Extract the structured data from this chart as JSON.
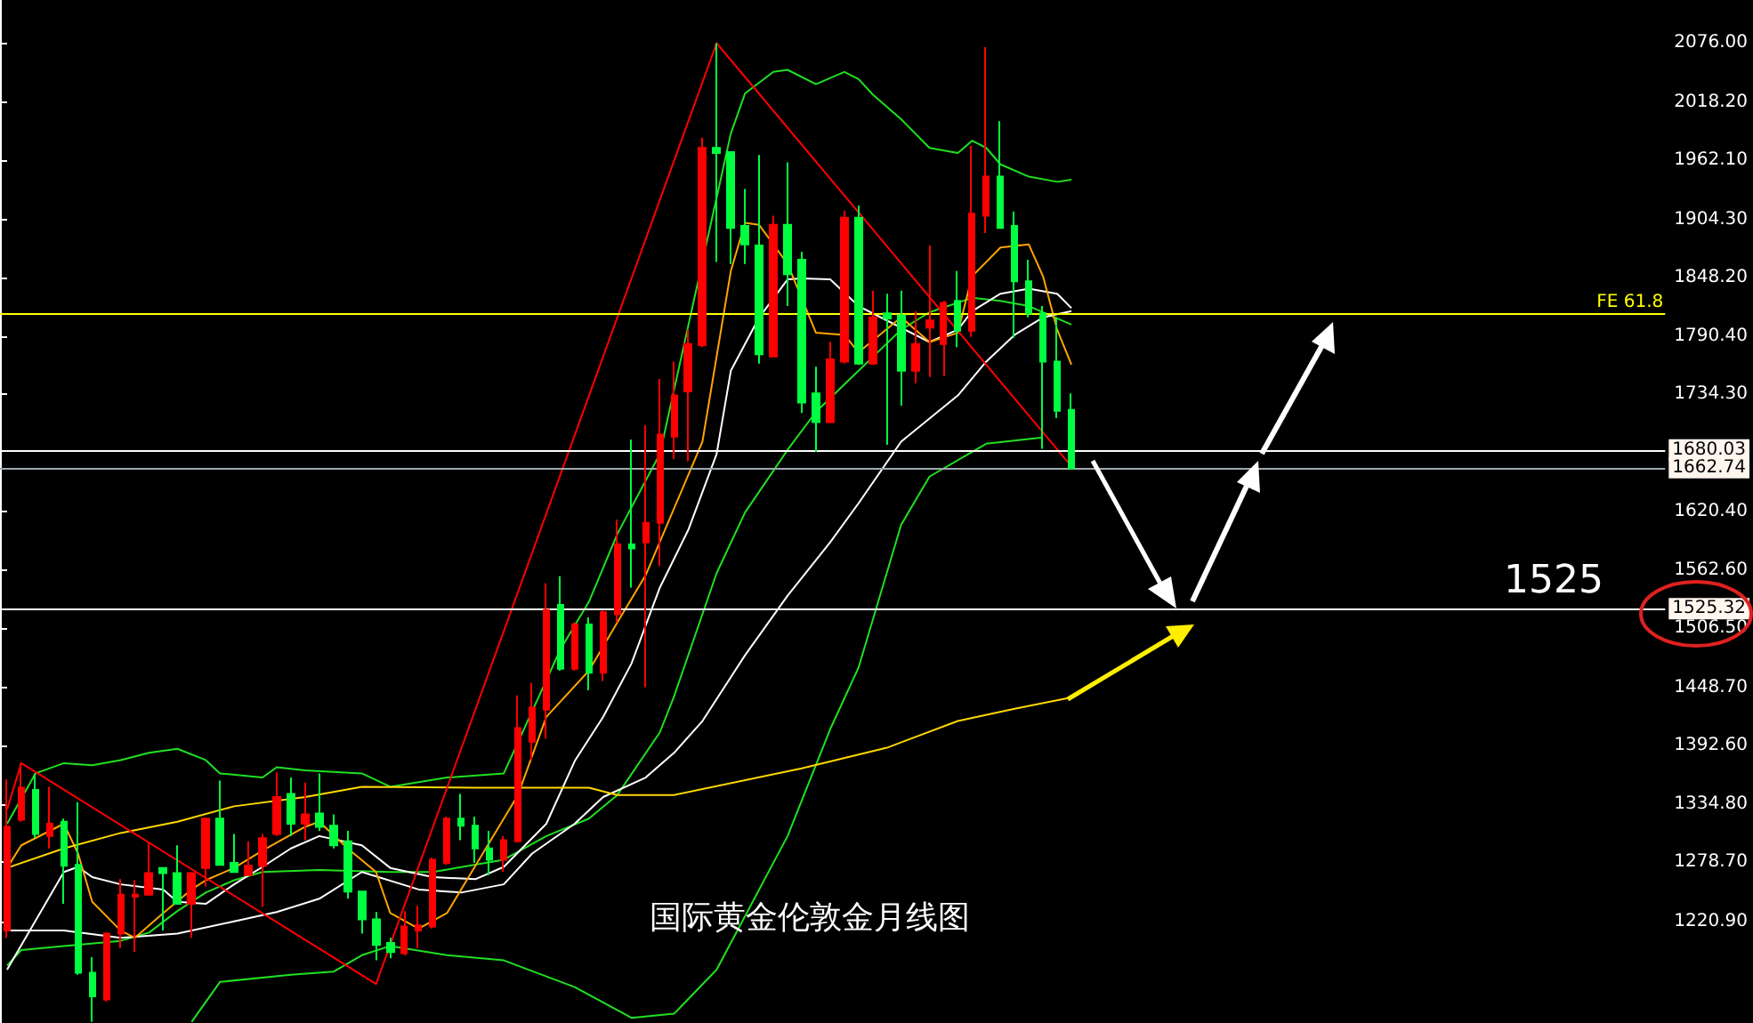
{
  "chart_data": {
    "type": "candlestick",
    "title": "国际黄金伦敦金月线图",
    "categories": [
      null,
      null,
      null,
      null,
      null,
      null,
      null,
      null,
      null,
      null,
      null,
      null,
      null,
      null,
      null,
      null,
      null,
      null,
      null,
      null,
      null,
      null,
      null,
      null,
      null,
      null,
      null,
      null,
      null,
      null,
      null,
      null,
      null,
      null,
      null,
      null,
      null,
      null,
      null,
      null,
      null,
      null,
      null,
      null,
      null,
      null,
      null,
      null,
      null,
      null,
      null,
      null,
      null,
      null,
      null,
      null,
      null,
      null,
      null,
      null,
      null,
      null,
      null,
      null,
      null,
      null,
      null,
      null,
      null,
      null,
      null,
      null,
      null,
      null,
      null,
      null
    ],
    "ohlc": [
      [
        1212,
        1359,
        1205,
        1313
      ],
      [
        1320,
        1375,
        1318,
        1351
      ],
      [
        1349,
        1365,
        1302,
        1306
      ],
      [
        1304,
        1352,
        1292,
        1316
      ],
      [
        1318,
        1321,
        1238,
        1275
      ],
      [
        1276,
        1337,
        1169,
        1171
      ],
      [
        1171,
        1186,
        1123,
        1148
      ],
      [
        1145,
        1209,
        1143,
        1209
      ],
      [
        1209,
        1262,
        1195,
        1247
      ],
      [
        1245,
        1261,
        1191,
        1247
      ],
      [
        1247,
        1297,
        1247,
        1268
      ],
      [
        1273,
        1273,
        1212,
        1268
      ],
      [
        1268,
        1295,
        1238,
        1238
      ],
      [
        1238,
        1269,
        1205,
        1268
      ],
      [
        1273,
        1321,
        1255,
        1321
      ],
      [
        1321,
        1358,
        1275,
        1276
      ],
      [
        1278,
        1306,
        1269,
        1269
      ],
      [
        1266,
        1299,
        1266,
        1275
      ],
      [
        1275,
        1306,
        1235,
        1302
      ],
      [
        1306,
        1366,
        1304,
        1342
      ],
      [
        1345,
        1361,
        1304,
        1316
      ],
      [
        1316,
        1356,
        1300,
        1325
      ],
      [
        1326,
        1365,
        1309,
        1313
      ],
      [
        1314,
        1325,
        1292,
        1295
      ],
      [
        1299,
        1309,
        1243,
        1250
      ],
      [
        1250,
        1250,
        1209,
        1223
      ],
      [
        1223,
        1230,
        1183,
        1198
      ],
      [
        1200,
        1205,
        1185,
        1191
      ],
      [
        1190,
        1231,
        1188,
        1216
      ],
      [
        1212,
        1236,
        1195,
        1217
      ],
      [
        1216,
        1283,
        1214,
        1281
      ],
      [
        1278,
        1323,
        1276,
        1321
      ],
      [
        1321,
        1345,
        1300,
        1314
      ],
      [
        1314,
        1323,
        1278,
        1292
      ],
      [
        1292,
        1309,
        1266,
        1281
      ],
      [
        1281,
        1304,
        1269,
        1300
      ],
      [
        1299,
        1441,
        1299,
        1409
      ],
      [
        1396,
        1453,
        1378,
        1429
      ],
      [
        1427,
        1550,
        1399,
        1524
      ],
      [
        1529,
        1557,
        1465,
        1467
      ],
      [
        1467,
        1512,
        1465,
        1510
      ],
      [
        1510,
        1517,
        1446,
        1463
      ],
      [
        1463,
        1524,
        1455,
        1522
      ],
      [
        1520,
        1612,
        1512,
        1588
      ],
      [
        1588,
        1690,
        1546,
        1584
      ],
      [
        1590,
        1704,
        1449,
        1609
      ],
      [
        1609,
        1749,
        1567,
        1695
      ],
      [
        1693,
        1766,
        1671,
        1733
      ],
      [
        1737,
        1797,
        1669,
        1783
      ],
      [
        1782,
        1984,
        1780,
        1974
      ],
      [
        1974,
        2076,
        1863,
        1969
      ],
      [
        1970,
        1970,
        1861,
        1896
      ],
      [
        1898,
        1934,
        1861,
        1880
      ],
      [
        1879,
        1967,
        1764,
        1773
      ],
      [
        1771,
        1908,
        1771,
        1899
      ],
      [
        1899,
        1960,
        1820,
        1851
      ],
      [
        1865,
        1873,
        1716,
        1726
      ],
      [
        1735,
        1761,
        1678,
        1707
      ],
      [
        1707,
        1785,
        1706,
        1768
      ],
      [
        1766,
        1913,
        1764,
        1906
      ],
      [
        1906,
        1918,
        1763,
        1764
      ],
      [
        1764,
        1835,
        1764,
        1809
      ],
      [
        1813,
        1832,
        1685,
        1808
      ],
      [
        1811,
        1835,
        1723,
        1757
      ],
      [
        1757,
        1815,
        1745,
        1783
      ],
      [
        1799,
        1879,
        1751,
        1806
      ],
      [
        1783,
        1825,
        1752,
        1823
      ],
      [
        1825,
        1854,
        1780,
        1796
      ],
      [
        1796,
        1976,
        1790,
        1910
      ],
      [
        1908,
        2072,
        1891,
        1946
      ],
      [
        1946,
        2000,
        1896,
        1896
      ],
      [
        1898,
        1912,
        1789,
        1844
      ],
      [
        1844,
        1865,
        1809,
        1813
      ],
      [
        1813,
        1820,
        1681,
        1766
      ],
      [
        1766,
        1809,
        1711,
        1718
      ],
      [
        1719,
        1735,
        1661,
        1662
      ]
    ],
    "colors": [
      "#ff0000",
      "#ff0000",
      "#00ff40",
      "#ff0000",
      "#00ff40",
      "#00ff40",
      "#00ff40",
      "#ff0000",
      "#ff0000",
      "#ff0000",
      "#ff0000",
      "#00ff40",
      "#00ff40",
      "#ff0000",
      "#ff0000",
      "#00ff40",
      "#00ff40",
      "#ff0000",
      "#ff0000",
      "#ff0000",
      "#00ff40",
      "#ff0000",
      "#00ff40",
      "#00ff40",
      "#00ff40",
      "#00ff40",
      "#00ff40",
      "#00ff40",
      "#ff0000",
      "#ff0000",
      "#ff0000",
      "#ff0000",
      "#00ff40",
      "#00ff40",
      "#00ff40",
      "#ff0000",
      "#ff0000",
      "#ff0000",
      "#ff0000",
      "#00ff40",
      "#ff0000",
      "#00ff40",
      "#ff0000",
      "#ff0000",
      "#00ff40",
      "#ff0000",
      "#ff0000",
      "#ff0000",
      "#ff0000",
      "#ff0000",
      "#00ff40",
      "#00ff40",
      "#00ff40",
      "#00ff40",
      "#ff0000",
      "#00ff40",
      "#00ff40",
      "#00ff40",
      "#ff0000",
      "#ff0000",
      "#00ff40",
      "#ff0000",
      "#00ff40",
      "#00ff40",
      "#ff0000",
      "#ff0000",
      "#ff0000",
      "#00ff40",
      "#ff0000",
      "#ff0000",
      "#00ff40",
      "#00ff40",
      "#00ff40",
      "#00ff40",
      "#00ff40",
      "#00ff40"
    ],
    "series": [
      {
        "type": "line",
        "color": "#20e020",
        "values": [
          1316,
          null,
          1365,
          null,
          1375,
          null,
          1373,
          null,
          1378,
          null,
          1385,
          null,
          1389,
          null,
          1378,
          1365,
          null,
          null,
          1361,
          1371,
          null,
          1368,
          null,
          null,
          null,
          1365,
          null,
          1352,
          null,
          null,
          null,
          1361,
          null,
          null,
          null,
          1365,
          null,
          null,
          null,
          1486,
          null,
          1532,
          null,
          1598,
          null,
          null,
          1676,
          null,
          null,
          null,
          null,
          1988,
          2027,
          null,
          2048,
          2050,
          null,
          2036,
          null,
          2048,
          2041,
          2026,
          null,
          2002,
          null,
          1974,
          null,
          1969,
          1981,
          1974,
          1958,
          null,
          1946,
          null,
          1941,
          1943
        ]
      },
      {
        "type": "line",
        "color": "#20e020",
        "values": [
          1178,
          1193,
          null,
          null,
          1197,
          null,
          null,
          null,
          1202,
          null,
          1210,
          null,
          1231,
          null,
          1249,
          null,
          1261,
          null,
          1269,
          null,
          null,
          null,
          1271,
          null,
          null,
          null,
          null,
          1269,
          null,
          null,
          1269,
          null,
          null,
          null,
          null,
          1281,
          null,
          null,
          1304,
          null,
          null,
          1321,
          null,
          1344,
          null,
          null,
          1405,
          1440,
          null,
          null,
          1560,
          null,
          1619,
          null,
          null,
          1680,
          null,
          1717,
          null,
          null,
          1757,
          null,
          null,
          1797,
          null,
          1814,
          null,
          null,
          1828,
          null,
          1825,
          null,
          1820,
          null,
          null,
          1802
        ]
      },
      {
        "type": "line",
        "color": "#20e020",
        "values": [
          null,
          null,
          null,
          null,
          null,
          null,
          null,
          null,
          null,
          null,
          null,
          null,
          null,
          1123,
          null,
          1162,
          null,
          null,
          null,
          null,
          1169,
          null,
          null,
          1172,
          null,
          1188,
          null,
          1197,
          null,
          null,
          null,
          1188,
          null,
          null,
          null,
          1183,
          null,
          null,
          null,
          null,
          1157,
          null,
          null,
          null,
          1127,
          null,
          null,
          1131,
          null,
          null,
          1174,
          null,
          null,
          null,
          null,
          1304,
          null,
          null,
          1408,
          null,
          1468,
          null,
          null,
          1607,
          null,
          1654,
          null,
          null,
          null,
          1686,
          null,
          null,
          null,
          1692,
          null,
          null
        ]
      },
      {
        "type": "line",
        "color": "#ffffff",
        "values": [
          1174,
          null,
          null,
          null,
          1269,
          1274,
          1264,
          null,
          1257,
          null,
          null,
          1252,
          1240,
          null,
          1238,
          null,
          1257,
          null,
          1274,
          null,
          1292,
          null,
          1304,
          null,
          null,
          1295,
          null,
          1273,
          null,
          null,
          1264,
          null,
          null,
          1262,
          null,
          1274,
          null,
          null,
          1316,
          null,
          1377,
          null,
          1420,
          null,
          1472,
          null,
          1546,
          null,
          1602,
          null,
          1676,
          1757,
          null,
          1809,
          null,
          1846,
          1847,
          null,
          1846,
          null,
          1820,
          null,
          1806,
          null,
          null,
          1785,
          null,
          1797,
          1815,
          null,
          1832,
          null,
          1837,
          null,
          1832,
          1818
        ]
      },
      {
        "type": "line",
        "color": "#ffffff",
        "values": [
          1212,
          null,
          null,
          null,
          1212,
          null,
          null,
          null,
          1205,
          null,
          null,
          null,
          1209,
          null,
          null,
          null,
          1221,
          null,
          null,
          1230,
          null,
          null,
          1243,
          null,
          null,
          1269,
          null,
          null,
          null,
          1252,
          null,
          null,
          1249,
          null,
          null,
          1257,
          null,
          1287,
          null,
          null,
          1316,
          null,
          1342,
          null,
          null,
          1361,
          null,
          1385,
          null,
          1416,
          null,
          null,
          1480,
          null,
          null,
          1538,
          null,
          null,
          1590,
          null,
          1628,
          null,
          null,
          1688,
          null,
          null,
          null,
          1733,
          null,
          1766,
          null,
          1792,
          null,
          1809,
          null,
          1815
        ]
      },
      {
        "type": "line",
        "color": "#ffa500",
        "values": [
          1273,
          1295,
          null,
          null,
          1316,
          1287,
          1240,
          null,
          1212,
          1205,
          null,
          1229,
          null,
          1252,
          1261,
          null,
          1273,
          null,
          1290,
          null,
          null,
          1313,
          1318,
          null,
          1292,
          null,
          1269,
          1229,
          null,
          1214,
          null,
          1229,
          null,
          1275,
          null,
          null,
          1344,
          null,
          1420,
          null,
          null,
          1465,
          null,
          1512,
          null,
          1558,
          null,
          null,
          null,
          1688,
          null,
          1854,
          1901,
          1899,
          null,
          1861,
          null,
          1794,
          null,
          1792,
          1775,
          null,
          null,
          1809,
          null,
          1785,
          null,
          1794,
          1849,
          null,
          1877,
          null,
          1880,
          1849,
          1797,
          1763
        ]
      },
      {
        "type": "line",
        "color": "#ffd700",
        "values": [
          1273,
          null,
          null,
          null,
          1292,
          null,
          null,
          null,
          1307,
          null,
          null,
          null,
          1318,
          null,
          null,
          null,
          1333,
          null,
          null,
          null,
          null,
          1342,
          null,
          null,
          null,
          1352,
          null,
          null,
          null,
          null,
          null,
          null,
          null,
          1351,
          null,
          null,
          null,
          null,
          null,
          null,
          null,
          1351,
          null,
          1344,
          null,
          null,
          null,
          1344,
          null,
          null,
          null,
          null,
          null,
          null,
          null,
          null,
          1370,
          null,
          null,
          null,
          null,
          null,
          1390,
          null,
          null,
          null,
          null,
          1416,
          null,
          null,
          null,
          1428,
          null,
          null,
          null,
          1439
        ]
      },
      {
        "type": "line",
        "color": "#ff0000",
        "values": [
          1330,
          1375,
          null,
          null,
          null,
          null,
          null,
          null,
          null,
          null,
          null,
          null,
          null,
          null,
          null,
          null,
          null,
          null,
          null,
          null,
          null,
          null,
          null,
          null,
          null,
          null,
          1160,
          null,
          null,
          null,
          null,
          null,
          null,
          null,
          null,
          null,
          null,
          null,
          null,
          null,
          null,
          null,
          null,
          null,
          null,
          null,
          null,
          null,
          null,
          null,
          2076,
          null,
          null,
          null,
          null,
          null,
          null,
          null,
          null,
          null,
          null,
          null,
          null,
          null,
          null,
          null,
          null,
          null,
          null,
          null,
          null,
          null,
          null,
          null,
          null,
          1664
        ]
      }
    ],
    "ylim": [
      1122,
      2118
    ],
    "yticks": [
      {
        "value": 2076,
        "label": "2076.00"
      },
      {
        "value": 2018.2,
        "label": "2018.20"
      },
      {
        "value": 1962.1,
        "label": "1962.10"
      },
      {
        "value": 1904.3,
        "label": "1904.30"
      },
      {
        "value": 1848.2,
        "label": "1848.20"
      },
      {
        "value": 1790.4,
        "label": "1790.40"
      },
      {
        "value": 1734.3,
        "label": "1734.30"
      },
      {
        "value": 1620.4,
        "label": "1620.40"
      },
      {
        "value": 1562.6,
        "label": "1562.60"
      },
      {
        "value": 1506.5,
        "label": "1506.50"
      },
      {
        "value": 1448.7,
        "label": "1448.70"
      },
      {
        "value": 1392.6,
        "label": "1392.60"
      },
      {
        "value": 1334.8,
        "label": "1334.80"
      },
      {
        "value": 1278.7,
        "label": "1278.70"
      },
      {
        "value": 1220.9,
        "label": "1220.90"
      }
    ],
    "ref_lines": [
      {
        "axis": "y",
        "value": 1813,
        "label": "FE 61.8",
        "color": "#ffff00"
      },
      {
        "axis": "y",
        "value": 1680.03,
        "label": "1680.03",
        "color": "#ffffff"
      },
      {
        "axis": "y",
        "value": 1662.74,
        "label": "1662.74",
        "color": "#a0a8b0"
      },
      {
        "axis": "y",
        "value": 1525.32,
        "label": "1525.32",
        "color": "#ffffff"
      }
    ],
    "annotations": [
      {
        "text": "1525",
        "y": 1525
      }
    ],
    "tick_labels": "y"
  }
}
